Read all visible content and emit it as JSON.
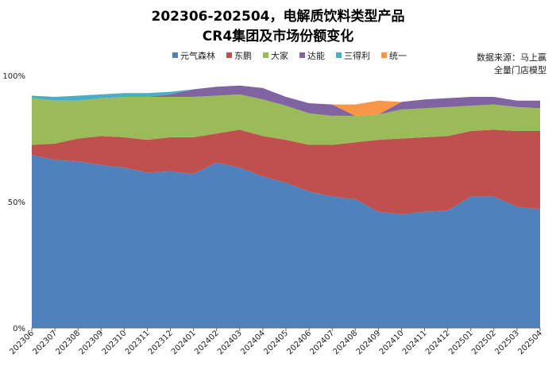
{
  "chart_data": {
    "type": "area",
    "stacked": true,
    "title_line1": "202306-202504，电解质饮料类型产品",
    "title_line2": "CR4集团及市场份额变化",
    "source_line1": "数据来源：马上赢",
    "source_line2": "全量门店模型",
    "x": [
      "202306",
      "202307",
      "202308",
      "202309",
      "202310",
      "202311",
      "202312",
      "202401",
      "202402",
      "202403",
      "202404",
      "202405",
      "202406",
      "202407",
      "202408",
      "202409",
      "202410",
      "202411",
      "202412",
      "202501",
      "202502",
      "202503",
      "202504"
    ],
    "yticks": [
      "0%",
      "50%",
      "100%"
    ],
    "ylim": [
      0,
      100
    ],
    "legend_position": "top-right",
    "grid": false,
    "series": [
      {
        "name": "元气森林",
        "color": "#4f81bd",
        "values": [
          68.5,
          66.5,
          66,
          64.5,
          63.5,
          61.5,
          62,
          61,
          65.5,
          63.5,
          60,
          57.5,
          54,
          52,
          51,
          46,
          45,
          46,
          46.5,
          52,
          52,
          48,
          47
        ]
      },
      {
        "name": "东鹏",
        "color": "#c0504d",
        "values": [
          4,
          6.5,
          9,
          11.5,
          12,
          13,
          13.5,
          14.5,
          11.5,
          15,
          16,
          17,
          18.5,
          20.5,
          22.5,
          28.5,
          30,
          29.5,
          29.5,
          26,
          26.5,
          30,
          31
        ]
      },
      {
        "name": "大家",
        "color": "#9bbb59",
        "values": [
          18.5,
          17,
          15,
          15,
          16,
          17,
          16,
          16,
          15,
          14,
          14.5,
          13.5,
          12.5,
          11.5,
          10.5,
          10,
          11.5,
          11.5,
          11.5,
          10,
          10,
          9.5,
          9
        ]
      },
      {
        "name": "达能",
        "color": "#8064a2",
        "values": [
          0,
          0,
          0,
          0,
          0,
          0,
          1,
          3,
          3.5,
          3.5,
          4.5,
          3.5,
          4,
          4.5,
          0,
          0,
          3,
          3.5,
          3.5,
          3.5,
          3,
          2.5,
          3
        ]
      },
      {
        "name": "三得利",
        "color": "#4bacc6",
        "values": [
          1,
          1.5,
          2,
          1.5,
          1.5,
          1.5,
          1,
          0,
          0,
          0,
          0,
          0,
          0,
          0,
          0,
          0,
          0,
          0,
          0,
          0,
          0,
          0,
          0
        ]
      },
      {
        "name": "统一",
        "color": "#f79646",
        "values": [
          0,
          0,
          0,
          0,
          0,
          0,
          0,
          0,
          0,
          0,
          0,
          0,
          0,
          0,
          4.5,
          5.5,
          0,
          0,
          0,
          0,
          0,
          0,
          0
        ]
      }
    ]
  }
}
